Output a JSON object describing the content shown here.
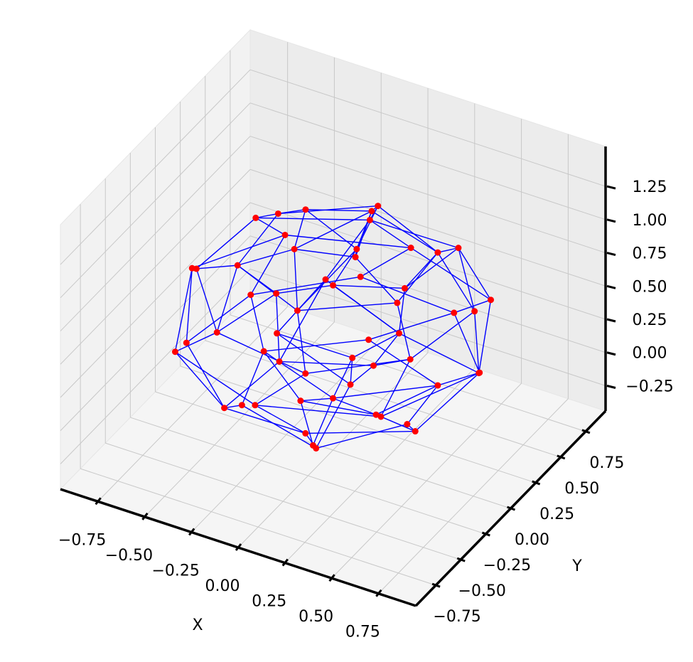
{
  "chart_data": {
    "type": "network3d",
    "xlabel": "X",
    "ylabel": "Y",
    "node_color": "#ff0000",
    "edge_color": "#0000ff",
    "xlim": [
      -0.95,
      0.95
    ],
    "ylim": [
      -0.95,
      0.95
    ],
    "zlim": [
      -0.44,
      1.55
    ],
    "xticks": [
      {
        "value": -0.75,
        "label": "−0.75"
      },
      {
        "value": -0.5,
        "label": "−0.50"
      },
      {
        "value": -0.25,
        "label": "−0.25"
      },
      {
        "value": 0,
        "label": "0.00"
      },
      0.25,
      {
        "value": 0.5,
        "label": "0.50"
      },
      0.75
    ],
    "yticks": [
      {
        "value": -0.75,
        "label": "−0.75"
      },
      {
        "value": -0.5,
        "label": "−0.50"
      },
      {
        "value": -0.25,
        "label": "−0.25"
      },
      {
        "value": 0,
        "label": "0.00"
      },
      0.25,
      {
        "value": 0.5,
        "label": "0.50"
      },
      0.75
    ],
    "zticks": [
      {
        "value": -0.25,
        "label": "−0.25"
      },
      {
        "value": 0,
        "label": "0.00"
      },
      0.25,
      {
        "value": 0.5,
        "label": "0.50"
      },
      0.75,
      {
        "value": 1,
        "label": "1.00"
      },
      1.25
    ],
    "grid": true,
    "x": [
      0.1,
      -0.2,
      0.2,
      -0.1,
      0.4,
      0.0,
      -0.4,
      -0.35,
      0.05,
      0.45,
      0.1,
      0.65,
      0.35,
      -0.15,
      -0.6,
      -0.65,
      -0.3,
      0.2,
      0.6,
      0.0,
      0.25,
      -0.25,
      0.78,
      0.55,
      0.0,
      -0.55,
      -0.78,
      -0.55,
      0.0,
      0.55,
      0.3,
      -0.2,
      -0.1,
      0.35,
      0.65,
      0.3,
      -0.2,
      -0.6,
      -0.65,
      -0.25,
      0.2,
      0.6,
      0.05,
      -0.3,
      0.2,
      0.4,
      -0.05,
      -0.45,
      -0.3,
      0.15,
      0.45,
      0.0,
      0.15,
      -0.2,
      0.0
    ],
    "y": [
      0.2,
      0.1,
      -0.15,
      -0.2,
      0.3,
      0.45,
      0.2,
      -0.3,
      -0.45,
      -0.2,
      0.05,
      0.2,
      0.6,
      0.65,
      0.35,
      -0.15,
      -0.6,
      -0.65,
      -0.35,
      0.0,
      0.25,
      -0.1,
      0.0,
      0.55,
      0.78,
      0.55,
      0.05,
      -0.55,
      -0.78,
      -0.55,
      0.1,
      0.3,
      -0.35,
      -0.25,
      0.25,
      0.65,
      0.65,
      0.3,
      -0.25,
      -0.62,
      -0.65,
      -0.3,
      0.1,
      0.0,
      -0.2,
      0.3,
      0.45,
      0.15,
      -0.35,
      -0.45,
      -0.1,
      0.0,
      0.15,
      0.05,
      -0.2
    ],
    "z": [
      1.25,
      1.2,
      1.22,
      1.18,
      1.0,
      1.05,
      1.0,
      1.02,
      0.98,
      1.03,
      1.08,
      0.75,
      0.78,
      0.72,
      0.76,
      0.74,
      0.77,
      0.73,
      0.79,
      0.8,
      0.7,
      0.7,
      0.5,
      0.52,
      0.48,
      0.5,
      0.53,
      0.47,
      0.5,
      0.49,
      0.5,
      0.52,
      0.45,
      0.55,
      0.25,
      0.23,
      0.27,
      0.22,
      0.26,
      0.24,
      0.28,
      0.21,
      0.2,
      0.3,
      0.3,
      0.0,
      0.02,
      -0.02,
      0.03,
      -0.01,
      0.04,
      -0.05,
      -0.22,
      -0.2,
      -0.25
    ],
    "edges": [
      [
        0,
        1
      ],
      [
        1,
        3
      ],
      [
        3,
        2
      ],
      [
        2,
        0
      ],
      [
        0,
        3
      ],
      [
        0,
        4
      ],
      [
        0,
        5
      ],
      [
        1,
        6
      ],
      [
        3,
        7
      ],
      [
        3,
        8
      ],
      [
        2,
        9
      ],
      [
        0,
        10
      ],
      [
        1,
        10
      ],
      [
        2,
        10
      ],
      [
        4,
        5
      ],
      [
        5,
        6
      ],
      [
        6,
        7
      ],
      [
        7,
        8
      ],
      [
        8,
        9
      ],
      [
        9,
        4
      ],
      [
        10,
        5
      ],
      [
        10,
        8
      ],
      [
        4,
        11
      ],
      [
        4,
        12
      ],
      [
        5,
        13
      ],
      [
        6,
        14
      ],
      [
        7,
        15
      ],
      [
        7,
        16
      ],
      [
        8,
        17
      ],
      [
        9,
        18
      ],
      [
        10,
        19
      ],
      [
        4,
        20
      ],
      [
        7,
        21
      ],
      [
        11,
        12
      ],
      [
        12,
        13
      ],
      [
        13,
        14
      ],
      [
        14,
        15
      ],
      [
        15,
        16
      ],
      [
        16,
        17
      ],
      [
        17,
        18
      ],
      [
        18,
        11
      ],
      [
        19,
        20
      ],
      [
        19,
        21
      ],
      [
        20,
        12
      ],
      [
        21,
        16
      ],
      [
        11,
        22
      ],
      [
        12,
        23
      ],
      [
        13,
        24
      ],
      [
        14,
        25
      ],
      [
        15,
        26
      ],
      [
        16,
        27
      ],
      [
        17,
        28
      ],
      [
        18,
        29
      ],
      [
        19,
        30
      ],
      [
        13,
        31
      ],
      [
        21,
        32
      ],
      [
        18,
        33
      ],
      [
        20,
        30
      ],
      [
        22,
        23
      ],
      [
        23,
        24
      ],
      [
        24,
        25
      ],
      [
        25,
        26
      ],
      [
        26,
        27
      ],
      [
        27,
        28
      ],
      [
        28,
        29
      ],
      [
        29,
        22
      ],
      [
        30,
        31
      ],
      [
        31,
        32
      ],
      [
        32,
        33
      ],
      [
        33,
        30
      ],
      [
        30,
        22
      ],
      [
        22,
        34
      ],
      [
        23,
        35
      ],
      [
        24,
        36
      ],
      [
        25,
        37
      ],
      [
        26,
        38
      ],
      [
        27,
        39
      ],
      [
        28,
        40
      ],
      [
        29,
        41
      ],
      [
        30,
        42
      ],
      [
        31,
        43
      ],
      [
        33,
        44
      ],
      [
        32,
        39
      ],
      [
        34,
        35
      ],
      [
        35,
        36
      ],
      [
        36,
        37
      ],
      [
        37,
        38
      ],
      [
        38,
        39
      ],
      [
        39,
        40
      ],
      [
        40,
        41
      ],
      [
        41,
        34
      ],
      [
        42,
        43
      ],
      [
        43,
        44
      ],
      [
        44,
        42
      ],
      [
        34,
        45
      ],
      [
        35,
        46
      ],
      [
        37,
        47
      ],
      [
        39,
        48
      ],
      [
        40,
        49
      ],
      [
        41,
        50
      ],
      [
        42,
        51
      ],
      [
        44,
        49
      ],
      [
        45,
        46
      ],
      [
        46,
        47
      ],
      [
        47,
        48
      ],
      [
        48,
        49
      ],
      [
        49,
        50
      ],
      [
        50,
        45
      ],
      [
        51,
        45
      ],
      [
        51,
        47
      ],
      [
        51,
        52
      ],
      [
        51,
        53
      ],
      [
        51,
        54
      ],
      [
        45,
        52
      ],
      [
        47,
        53
      ],
      [
        49,
        54
      ],
      [
        52,
        53
      ],
      [
        53,
        54
      ]
    ]
  }
}
